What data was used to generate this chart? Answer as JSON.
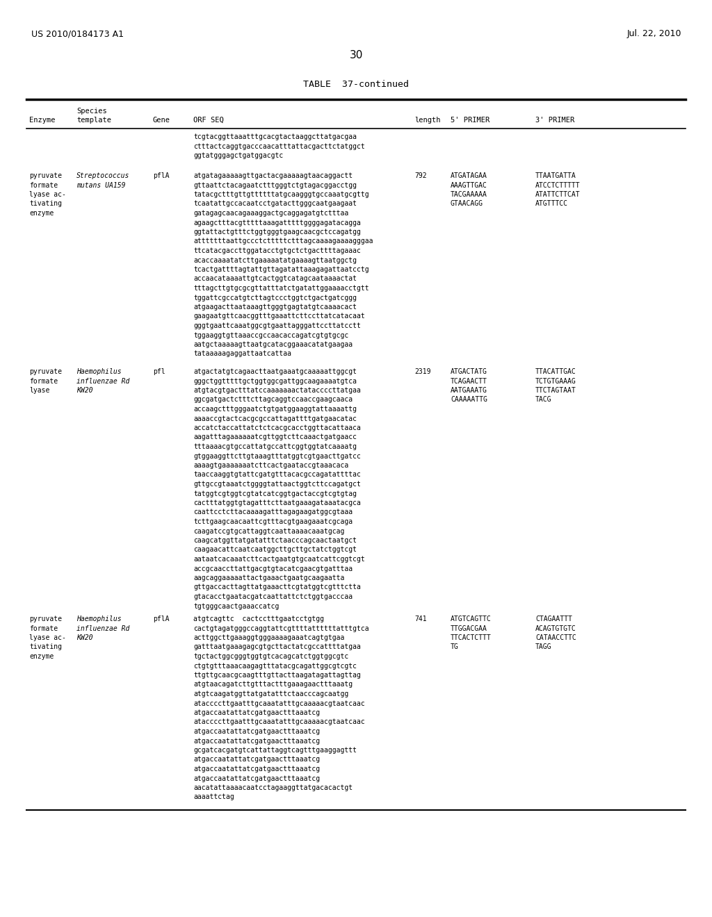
{
  "background_color": "#ffffff",
  "header_left": "US 2010/0184173 A1",
  "header_right": "Jul. 22, 2010",
  "page_number": "30",
  "table_title": "TABLE  37-continued",
  "row0_orf": [
    "tcgtacggttaaatttgcacgtactaaggcttatgacgaa",
    "ctttactcaggtgacccaacatttattacgacttctatggct",
    "ggtatgggagctgatggacgtc"
  ],
  "row1_enzyme": [
    "pyruvate",
    "formate",
    "lyase ac-",
    "tivating",
    "enzyme"
  ],
  "row1_species": [
    "Streptococcus",
    "mutans UA159"
  ],
  "row1_gene": "pflA",
  "row1_orf": [
    "atgatagaaaaagttgactacgaaaaagtaacaggactt",
    "gttaattctacagaatctttgggtctgtagacggacctgg",
    "tatacgctttgttgttttttatgcaagggtgccaaatgcgttg",
    "tcaatattgccacaatcctgatacttgggcaatgaagaat",
    "gatagagcaacagaaaggactgcaggagatgtctttaa",
    "agaagctttacgtttttaaagatttttggggagatacagga",
    "ggtattactgtttctggtgggtgaagcaacgctccagatgg",
    "atttttttaattgccctctttttctttagcaaaagaaaagggaa",
    "ttcatacgaccttggatacctgtgctctgacttttagaaac",
    "acaccaaaatatcttgaaaaatatgaaaagttaatggctg",
    "tcactgattttagtattgttagatattaaagagattaatcctg",
    "accaacataaaattgtcactggtcatagcaataaaactat",
    "tttagcttgtgcgcgttatttatctgatattggaaaacctgtt",
    "tggattcgccatgtcttagtccctggtctgactgatcggg",
    "atgaagacttaataaagttgggtgagtatgtcaaaacact",
    "gaagaatgttcaacggtttgaaattcttccttatcatacaat",
    "gggtgaattcaaatggcgtgaattagggattccttatcctt",
    "tggaaggtgttaaaccgccaacaccagatcgtgtgcgc",
    "aatgctaaaaagttaatgcatacggaaacatatgaagaa",
    "tataaaaagaggattaatcattaa"
  ],
  "row1_length": "792",
  "row1_primer5": [
    "ATGATAGAA",
    "AAAGTTGAC",
    "TACGAAAAA",
    "GTAACAGG"
  ],
  "row1_primer3": [
    "TTAATGATTA",
    "ATCCTCTTTTT",
    "ATATTCTTCAT",
    "ATGTTTCC"
  ],
  "row2_enzyme": [
    "pyruvate",
    "formate",
    "lyase"
  ],
  "row2_species": [
    "Haemophilus",
    "influenzae Rd",
    "KW20"
  ],
  "row2_gene": "pfl",
  "row2_orf": [
    "atgactatgtcagaacttaatgaaatgcaaaaattggcgt",
    "gggctggtttttgctggtggcgattggcaagaaaatgtca",
    "atgtacgtgactttatccaaaaaaactataccccttatgaa",
    "ggcgatgactctttcttagcaggtccaaccgaagcaaca",
    "accaagctttgggaatctgtgatggaaggtattaaaattg",
    "aaaaccgtactcacgcgccattagattttgatgaacatac",
    "accatctaccattatctctcacgcacctggttacattaaca",
    "aagatttagaaaaaatcgttggtcttcaaactgatgaacc",
    "tttaaaacgtgccattatgccattcggtggtatcaaaatg",
    "gtggaaggttcttgtaaagtttatggtcgtgaacttgatcc",
    "aaaagtgaaaaaaatcttcactgaataccgtaaacaca",
    "taaccaaggtgtattcgatgtttacacgccagatattttac",
    "gttgccgtaaatctggggtattaactggtcttccagatgct",
    "tatggtcgtggtcgtatcatcggtgactaccgtcgtgtag",
    "cactttatggtgtagatttcttaatgaaagataaatacgca",
    "caattcctcttacaaaagatttagagaagatggcgtaaa",
    "tcttgaagcaacaattcgtttacgtgaagaaatcgcaga",
    "caagatccgtgcattaggtcaattaaaacaaatgcag",
    "caagcatggttatgatatttctaacccagcaactaatgct",
    "caagaacattcaatcaatggcttgcttgctatctggtcgt",
    "aataatcacaaatcttcactgaatgtgcaatcattcggtcgt",
    "accgcaaccttattgacgtgtacatcgaacgtgatttaa",
    "aagcaggaaaaattactgaaactgaatgcaagaatta",
    "gttgaccacttagttatgaaacttcgtatggtcgtttctta",
    "gtacacctgaatacgatcaattattctctggtgacccaa",
    "tgtgggcaactgaaaccatcg"
  ],
  "row2_length": "2319",
  "row2_primer5": [
    "ATGACTATG",
    "TCAGAACTT",
    "AATGAAATG",
    "CAAAAATTG"
  ],
  "row2_primer3": [
    "TTACATTGAC",
    "TCTGTGAAAG",
    "TTCTAGTAAT",
    "TACG"
  ],
  "row3_enzyme": [
    "pyruvate",
    "formate",
    "lyase ac-",
    "tivating",
    "enzyme"
  ],
  "row3_species": [
    "Haemophilus",
    "influenzae Rd",
    "KW20"
  ],
  "row3_gene": "pflA",
  "row3_orf": [
    "atgtcagttc  cactcctttgaatcctgtgg",
    "cactgtagatgggccaggtattcgttttattttttatttgtca",
    "acttggcttgaaaggtgggaaaagaaatcagtgtgaa",
    "gatttaatgaaagagcgtgcttactatcgccattttatgaa",
    "tgctactggcgggtggtgtcacagcatctggtggcgtc",
    "ctgtgtttaaacaagagtttatacgcagattggcgtcgtc",
    "ttgttgcaacgcaagtttgttacttaagatagattagttag",
    "atgtaacagatcttgtttactttgaaagaactttaaatg",
    "atgtcaagatggttatgatatttctaacccagcaatgg",
    "ataccccttgaatttgcaaatatttgcaaaaacgtaatcaac",
    "atgaccaatattatcgatgaactttaaatcg",
    "ataccccttgaatttgcaaatatttgcaaaaacgtaatcaac",
    "atgaccaatattatcgatgaactttaaatcg",
    "atgaccaatattatcgatgaactttaaatcg",
    "gcgatcacgatgtcattattaggtcagtttgaaggagttt",
    "atgaccaatattatcgatgaactttaaatcg",
    "atgaccaatattatcgatgaactttaaatcg",
    "atgaccaatattatcgatgaactttaaatcg",
    "aacatattaaaacaatcctagaaggttatgacacactgt",
    "aaaattctag"
  ],
  "row3_length": "741",
  "row3_primer5": [
    "ATGTCAGTTC",
    "TTGGACGAA",
    "TTCACTCTTT",
    "TG"
  ],
  "row3_primer3": [
    "CTAGAATTT",
    "ACAGTGTGTC",
    "CATAACCTTC",
    "TAGG"
  ]
}
